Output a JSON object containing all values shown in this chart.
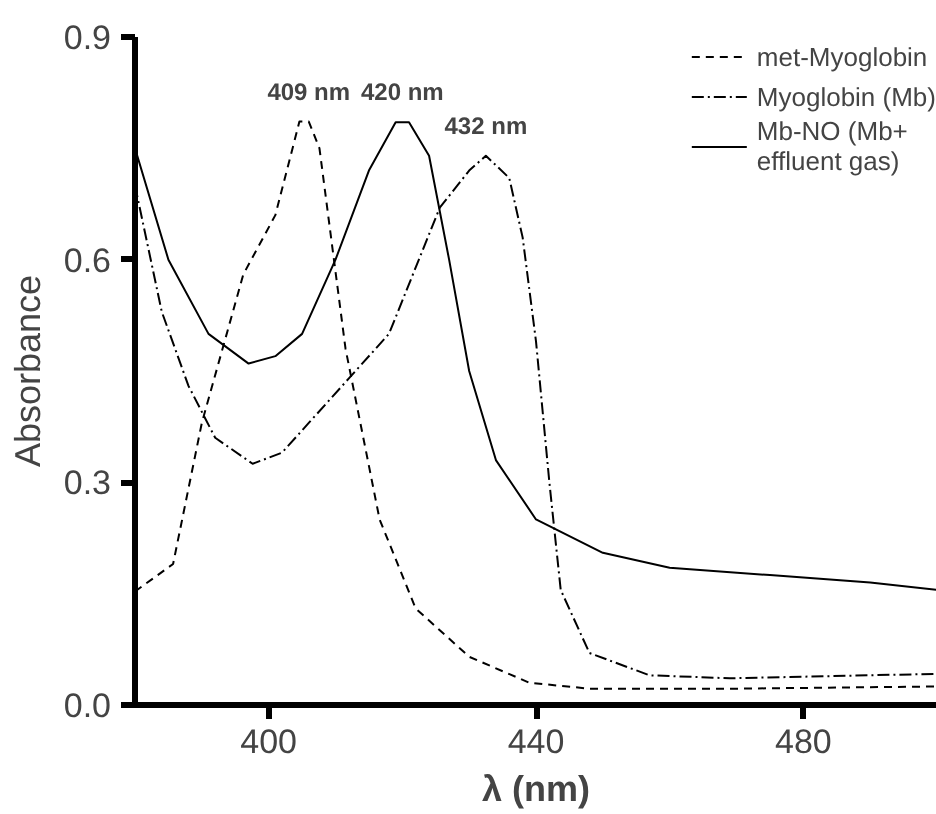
{
  "chart_data": {
    "type": "line",
    "xlabel": "λ (nm)",
    "ylabel": "Absorbance",
    "xlim": [
      380,
      500
    ],
    "xticks": [
      400,
      440,
      480
    ],
    "ylim": [
      0,
      0.9
    ],
    "yticks": [
      {
        "value": 0,
        "label": "0.0"
      },
      0.3,
      0.6,
      0.9
    ],
    "grid": false,
    "legend": "top right",
    "marker": "none",
    "series": [
      {
        "name": "met-Myoglobin",
        "color": "#000000",
        "line_style": "dashed",
        "x": [
          380,
          385.7,
          390,
          396.2,
          401,
          404.6,
          406,
          407.6,
          411.5,
          416.6,
          422,
          430,
          439,
          448,
          470,
          500
        ],
        "values": [
          0.153,
          0.19,
          0.38,
          0.58,
          0.66,
          0.786,
          0.786,
          0.75,
          0.48,
          0.25,
          0.13,
          0.065,
          0.03,
          0.022,
          0.022,
          0.025
        ]
      },
      {
        "name": "Myoglobin (Mb)",
        "color": "#000000",
        "line_style": "dashdot",
        "x": [
          380,
          384,
          388,
          392,
          397.6,
          402,
          406,
          412,
          418,
          425.6,
          430,
          432.5,
          436,
          438,
          440,
          442,
          443.7,
          448,
          457,
          469,
          500
        ],
        "values": [
          0.7,
          0.53,
          0.43,
          0.36,
          0.325,
          0.34,
          0.38,
          0.44,
          0.5,
          0.67,
          0.72,
          0.74,
          0.71,
          0.63,
          0.49,
          0.3,
          0.155,
          0.07,
          0.04,
          0.036,
          0.042
        ]
      },
      {
        "name": "Mb-NO (Mb+\neffluent gas)",
        "color": "#000000",
        "line_style": "solid",
        "x": [
          380,
          385,
          391,
          397,
          401,
          405,
          410,
          415,
          419,
          421,
          424,
          427,
          430,
          434,
          440,
          450,
          460,
          475,
          490,
          500
        ],
        "values": [
          0.75,
          0.6,
          0.5,
          0.46,
          0.47,
          0.5,
          0.6,
          0.72,
          0.785,
          0.785,
          0.74,
          0.6,
          0.45,
          0.33,
          0.25,
          0.205,
          0.185,
          0.175,
          0.165,
          0.155
        ]
      }
    ],
    "annotations": [
      {
        "text": "409 nm",
        "x": 406,
        "y": 0.786
      },
      {
        "text": "420 nm",
        "x": 420,
        "y": 0.785
      },
      {
        "text": "432 nm",
        "x": 432.5,
        "y": 0.74
      }
    ]
  }
}
